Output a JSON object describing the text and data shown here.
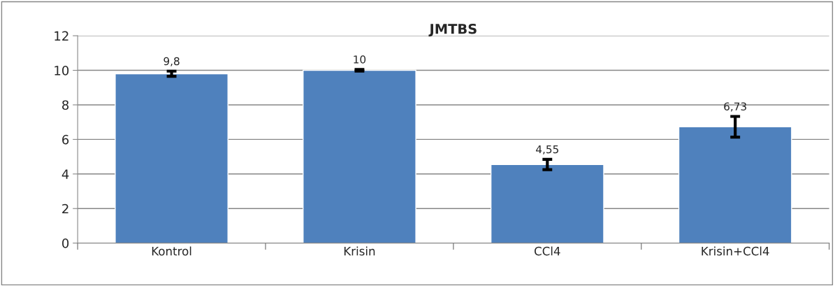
{
  "chart_data": {
    "type": "bar",
    "title": "JMTBS",
    "categories": [
      "Kontrol",
      "Krisin",
      "CCl4",
      "Krisin+CCl4"
    ],
    "values": [
      9.8,
      10,
      4.55,
      6.73
    ],
    "value_labels": [
      "9,8",
      "10",
      "4,55",
      "6,73"
    ],
    "errors": [
      0.15,
      0.05,
      0.3,
      0.6
    ],
    "color": "#4f81bd",
    "ylim": [
      0,
      12
    ],
    "yticks": [
      0,
      2,
      4,
      6,
      8,
      10,
      12
    ],
    "grid": "y",
    "legend": false
  }
}
